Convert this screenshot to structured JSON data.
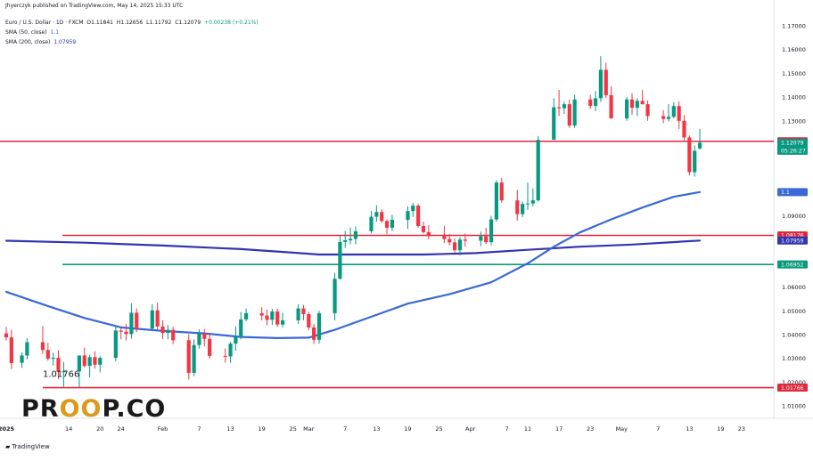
{
  "header": {
    "published_by": "Jhyerczyk published on TradingView.com, May 14, 2025 15:33 UTC",
    "symbol": "Euro / U.S. Dollar · 1D · FXCM",
    "open": "O1.11841",
    "high": "H1.12656",
    "low": "L1.11792",
    "close": "C1.12079",
    "change": "+0.00238 (+0.21%)",
    "sma50_label": "SMA (50, close)",
    "sma50_value": "1.1",
    "sma200_label": "SMA (200, close)",
    "sma200_value": "1.07959"
  },
  "footer": {
    "brand": "TradingView"
  },
  "logo": {
    "text_left": "PR",
    "text_mid": "OO",
    "text_right": "P.CO"
  },
  "colors": {
    "up": "#089981",
    "down": "#f23645",
    "sma50": "#3a68d8",
    "sma200": "#3136b0",
    "level_red": "#e1283c",
    "level_green": "#0a9a7b"
  },
  "chart_data": {
    "type": "candlestick",
    "symbol": "EURUSD",
    "timeframe": "1D",
    "ylim": [
      1.005,
      1.175
    ],
    "y_ticks": [
      "1.17000",
      "1.16000",
      "1.15000",
      "1.14000",
      "1.13000",
      "1.10000",
      "1.09000",
      "1.06000",
      "1.05000",
      "1.04000",
      "1.03000",
      "1.02000",
      "1.01000"
    ],
    "x_ticks": [
      "2025",
      "14",
      "20",
      "24",
      "Feb",
      "7",
      "13",
      "19",
      "25",
      "Mar",
      "7",
      "13",
      "19",
      "25",
      "Apr",
      "7",
      "11",
      "17",
      "23",
      "May",
      "7",
      "13",
      "19",
      "23"
    ],
    "x_tick_days": [
      0,
      12,
      18,
      22,
      30,
      37,
      43,
      49,
      55,
      58,
      65,
      71,
      77,
      83,
      89,
      96,
      100,
      106,
      112,
      118,
      125,
      131,
      137,
      141
    ],
    "last_day": 133,
    "candles": [
      {
        "d": 0,
        "o": 1.0405,
        "h": 1.0432,
        "l": 1.0375,
        "c": 1.0388
      },
      {
        "d": 1,
        "o": 1.0388,
        "h": 1.042,
        "l": 1.0255,
        "c": 1.028
      },
      {
        "d": 3,
        "o": 1.0281,
        "h": 1.0325,
        "l": 1.026,
        "c": 1.0312
      },
      {
        "d": 4,
        "o": 1.0312,
        "h": 1.0385,
        "l": 1.0295,
        "c": 1.0368
      },
      {
        "d": 7,
        "o": 1.0368,
        "h": 1.0436,
        "l": 1.0318,
        "c": 1.0335
      },
      {
        "d": 8,
        "o": 1.0335,
        "h": 1.0365,
        "l": 1.0291,
        "c": 1.0298
      },
      {
        "d": 9,
        "o": 1.0298,
        "h": 1.0324,
        "l": 1.027,
        "c": 1.0302
      },
      {
        "d": 10,
        "o": 1.0302,
        "h": 1.0334,
        "l": 1.0213,
        "c": 1.0243
      },
      {
        "d": 11,
        "o": 1.0243,
        "h": 1.0285,
        "l": 1.018,
        "c": 1.0245
      },
      {
        "d": 14,
        "o": 1.0245,
        "h": 1.031,
        "l": 1.0177,
        "c": 1.0312
      },
      {
        "d": 15,
        "o": 1.0312,
        "h": 1.0345,
        "l": 1.0262,
        "c": 1.0268
      },
      {
        "d": 16,
        "o": 1.0268,
        "h": 1.0315,
        "l": 1.022,
        "c": 1.0305
      },
      {
        "d": 17,
        "o": 1.0305,
        "h": 1.033,
        "l": 1.0256,
        "c": 1.0273
      },
      {
        "d": 18,
        "o": 1.0273,
        "h": 1.0308,
        "l": 1.0241,
        "c": 1.0302
      },
      {
        "d": 21,
        "o": 1.0302,
        "h": 1.044,
        "l": 1.0288,
        "c": 1.0417
      },
      {
        "d": 22,
        "o": 1.0417,
        "h": 1.0435,
        "l": 1.038,
        "c": 1.0412
      },
      {
        "d": 23,
        "o": 1.0412,
        "h": 1.0445,
        "l": 1.0375,
        "c": 1.0402
      },
      {
        "d": 24,
        "o": 1.0402,
        "h": 1.0532,
        "l": 1.0383,
        "c": 1.0492
      },
      {
        "d": 25,
        "o": 1.0492,
        "h": 1.051,
        "l": 1.041,
        "c": 1.0425
      },
      {
        "d": 28,
        "o": 1.0425,
        "h": 1.0528,
        "l": 1.0415,
        "c": 1.0502
      },
      {
        "d": 29,
        "o": 1.0502,
        "h": 1.0534,
        "l": 1.042,
        "c": 1.0434
      },
      {
        "d": 30,
        "o": 1.0434,
        "h": 1.046,
        "l": 1.0381,
        "c": 1.0407
      },
      {
        "d": 31,
        "o": 1.0407,
        "h": 1.044,
        "l": 1.038,
        "c": 1.042
      },
      {
        "d": 32,
        "o": 1.042,
        "h": 1.0434,
        "l": 1.036,
        "c": 1.0376
      },
      {
        "d": 35,
        "o": 1.0376,
        "h": 1.0401,
        "l": 1.021,
        "c": 1.0239
      },
      {
        "d": 36,
        "o": 1.0239,
        "h": 1.038,
        "l": 1.0225,
        "c": 1.0356
      },
      {
        "d": 37,
        "o": 1.0356,
        "h": 1.0422,
        "l": 1.0341,
        "c": 1.0405
      },
      {
        "d": 38,
        "o": 1.0405,
        "h": 1.0423,
        "l": 1.035,
        "c": 1.0382
      },
      {
        "d": 39,
        "o": 1.0382,
        "h": 1.0402,
        "l": 1.0298,
        "c": 1.031
      },
      {
        "d": 42,
        "o": 1.031,
        "h": 1.0342,
        "l": 1.0282,
        "c": 1.0308
      },
      {
        "d": 43,
        "o": 1.0308,
        "h": 1.037,
        "l": 1.0281,
        "c": 1.0362
      },
      {
        "d": 44,
        "o": 1.0362,
        "h": 1.0435,
        "l": 1.0332,
        "c": 1.039
      },
      {
        "d": 45,
        "o": 1.039,
        "h": 1.0495,
        "l": 1.038,
        "c": 1.0464
      },
      {
        "d": 46,
        "o": 1.0464,
        "h": 1.051,
        "l": 1.0456,
        "c": 1.049
      },
      {
        "d": 49,
        "o": 1.049,
        "h": 1.0515,
        "l": 1.046,
        "c": 1.048
      },
      {
        "d": 50,
        "o": 1.048,
        "h": 1.0505,
        "l": 1.0439,
        "c": 1.0462
      },
      {
        "d": 51,
        "o": 1.0462,
        "h": 1.0508,
        "l": 1.044,
        "c": 1.0497
      },
      {
        "d": 52,
        "o": 1.0497,
        "h": 1.051,
        "l": 1.0432,
        "c": 1.0442
      },
      {
        "d": 53,
        "o": 1.0442,
        "h": 1.0492,
        "l": 1.043,
        "c": 1.046
      },
      {
        "d": 56,
        "o": 1.046,
        "h": 1.0528,
        "l": 1.0445,
        "c": 1.051
      },
      {
        "d": 57,
        "o": 1.051,
        "h": 1.0525,
        "l": 1.046,
        "c": 1.0486
      },
      {
        "d": 58,
        "o": 1.0486,
        "h": 1.0496,
        "l": 1.0419,
        "c": 1.043
      },
      {
        "d": 59,
        "o": 1.043,
        "h": 1.0445,
        "l": 1.036,
        "c": 1.0378
      },
      {
        "d": 60,
        "o": 1.0378,
        "h": 1.05,
        "l": 1.0362,
        "c": 1.049
      },
      {
        "d": 63,
        "o": 1.049,
        "h": 1.066,
        "l": 1.046,
        "c": 1.0635
      },
      {
        "d": 64,
        "o": 1.0635,
        "h": 1.0815,
        "l": 1.0632,
        "c": 1.079
      },
      {
        "d": 65,
        "o": 1.079,
        "h": 1.0837,
        "l": 1.0765,
        "c": 1.0797
      },
      {
        "d": 66,
        "o": 1.0797,
        "h": 1.085,
        "l": 1.078,
        "c": 1.0803
      },
      {
        "d": 67,
        "o": 1.0803,
        "h": 1.0855,
        "l": 1.078,
        "c": 1.0835
      },
      {
        "d": 70,
        "o": 1.0835,
        "h": 1.092,
        "l": 1.0825,
        "c": 1.0896
      },
      {
        "d": 71,
        "o": 1.0896,
        "h": 1.0945,
        "l": 1.0875,
        "c": 1.0916
      },
      {
        "d": 72,
        "o": 1.0916,
        "h": 1.0928,
        "l": 1.087,
        "c": 1.0878
      },
      {
        "d": 73,
        "o": 1.0878,
        "h": 1.0885,
        "l": 1.0822,
        "c": 1.085
      },
      {
        "d": 74,
        "o": 1.085,
        "h": 1.0905,
        "l": 1.0836,
        "c": 1.0883
      },
      {
        "d": 77,
        "o": 1.0883,
        "h": 1.094,
        "l": 1.0845,
        "c": 1.092
      },
      {
        "d": 78,
        "o": 1.092,
        "h": 1.0955,
        "l": 1.0895,
        "c": 1.0943
      },
      {
        "d": 79,
        "o": 1.0943,
        "h": 1.095,
        "l": 1.085,
        "c": 1.0857
      },
      {
        "d": 80,
        "o": 1.0857,
        "h": 1.0875,
        "l": 1.0826,
        "c": 1.0831
      },
      {
        "d": 81,
        "o": 1.0831,
        "h": 1.086,
        "l": 1.08,
        "c": 1.0815
      },
      {
        "d": 84,
        "o": 1.0815,
        "h": 1.0858,
        "l": 1.0785,
        "c": 1.0802
      },
      {
        "d": 85,
        "o": 1.0802,
        "h": 1.0824,
        "l": 1.0775,
        "c": 1.0788
      },
      {
        "d": 86,
        "o": 1.0788,
        "h": 1.0804,
        "l": 1.0745,
        "c": 1.0755
      },
      {
        "d": 87,
        "o": 1.0755,
        "h": 1.081,
        "l": 1.0733,
        "c": 1.08
      },
      {
        "d": 88,
        "o": 1.08,
        "h": 1.0825,
        "l": 1.077,
        "c": 1.0795
      },
      {
        "d": 91,
        "o": 1.0795,
        "h": 1.0834,
        "l": 1.0772,
        "c": 1.0814
      },
      {
        "d": 92,
        "o": 1.0814,
        "h": 1.085,
        "l": 1.078,
        "c": 1.0789
      },
      {
        "d": 93,
        "o": 1.0789,
        "h": 1.09,
        "l": 1.0776,
        "c": 1.0885
      },
      {
        "d": 94,
        "o": 1.0885,
        "h": 1.105,
        "l": 1.0876,
        "c": 1.104
      },
      {
        "d": 95,
        "o": 1.104,
        "h": 1.106,
        "l": 1.0955,
        "c": 1.0965
      },
      {
        "d": 98,
        "o": 1.0965,
        "h": 1.101,
        "l": 1.088,
        "c": 1.0907
      },
      {
        "d": 99,
        "o": 1.0907,
        "h": 1.096,
        "l": 1.0895,
        "c": 1.095
      },
      {
        "d": 100,
        "o": 1.095,
        "h": 1.104,
        "l": 1.0925,
        "c": 1.0952
      },
      {
        "d": 101,
        "o": 1.0952,
        "h": 1.1015,
        "l": 1.094,
        "c": 1.0965
      },
      {
        "d": 102,
        "o": 1.0965,
        "h": 1.1235,
        "l": 1.096,
        "c": 1.122
      },
      {
        "d": 105,
        "o": 1.122,
        "h": 1.1395,
        "l": 1.122,
        "c": 1.1357
      },
      {
        "d": 106,
        "o": 1.1357,
        "h": 1.143,
        "l": 1.132,
        "c": 1.1353
      },
      {
        "d": 107,
        "o": 1.1353,
        "h": 1.138,
        "l": 1.1329,
        "c": 1.137
      },
      {
        "d": 108,
        "o": 1.137,
        "h": 1.139,
        "l": 1.127,
        "c": 1.128
      },
      {
        "d": 109,
        "o": 1.128,
        "h": 1.141,
        "l": 1.127,
        "c": 1.139
      },
      {
        "d": 112,
        "o": 1.139,
        "h": 1.141,
        "l": 1.135,
        "c": 1.1363
      },
      {
        "d": 113,
        "o": 1.1363,
        "h": 1.1425,
        "l": 1.134,
        "c": 1.1395
      },
      {
        "d": 114,
        "o": 1.1395,
        "h": 1.1572,
        "l": 1.138,
        "c": 1.1515
      },
      {
        "d": 115,
        "o": 1.1515,
        "h": 1.1545,
        "l": 1.1395,
        "c": 1.1408
      },
      {
        "d": 116,
        "o": 1.1408,
        "h": 1.1445,
        "l": 1.131,
        "c": 1.131
      },
      {
        "d": 119,
        "o": 1.131,
        "h": 1.14,
        "l": 1.13,
        "c": 1.139
      },
      {
        "d": 120,
        "o": 1.139,
        "h": 1.1415,
        "l": 1.1325,
        "c": 1.1355
      },
      {
        "d": 121,
        "o": 1.1355,
        "h": 1.1395,
        "l": 1.132,
        "c": 1.1384
      },
      {
        "d": 122,
        "o": 1.1384,
        "h": 1.143,
        "l": 1.1368,
        "c": 1.137
      },
      {
        "d": 123,
        "o": 1.137,
        "h": 1.1386,
        "l": 1.13,
        "c": 1.132
      },
      {
        "d": 126,
        "o": 1.132,
        "h": 1.1345,
        "l": 1.129,
        "c": 1.1308
      },
      {
        "d": 127,
        "o": 1.1308,
        "h": 1.137,
        "l": 1.1298,
        "c": 1.1317
      },
      {
        "d": 128,
        "o": 1.1317,
        "h": 1.1378,
        "l": 1.131,
        "c": 1.1362
      },
      {
        "d": 129,
        "o": 1.1362,
        "h": 1.1382,
        "l": 1.1265,
        "c": 1.13
      },
      {
        "d": 130,
        "o": 1.13,
        "h": 1.1325,
        "l": 1.1218,
        "c": 1.123
      },
      {
        "d": 131,
        "o": 1.123,
        "h": 1.1238,
        "l": 1.107,
        "c": 1.1084
      },
      {
        "d": 132,
        "o": 1.1084,
        "h": 1.1196,
        "l": 1.1065,
        "c": 1.1174
      },
      {
        "d": 133,
        "o": 1.1184,
        "h": 1.1266,
        "l": 1.1179,
        "c": 1.1208
      }
    ],
    "sma200_points": [
      [
        0,
        1.0795
      ],
      [
        15,
        1.0787
      ],
      [
        30,
        1.0775
      ],
      [
        45,
        1.076
      ],
      [
        55,
        1.0745
      ],
      [
        60,
        1.0737
      ],
      [
        70,
        1.0737
      ],
      [
        80,
        1.0737
      ],
      [
        90,
        1.0743
      ],
      [
        100,
        1.0757
      ],
      [
        110,
        1.077
      ],
      [
        120,
        1.0779
      ],
      [
        133,
        1.0796
      ]
    ],
    "sma50_points": [
      [
        0,
        1.058
      ],
      [
        8,
        1.052
      ],
      [
        15,
        1.047
      ],
      [
        22,
        1.043
      ],
      [
        30,
        1.0415
      ],
      [
        38,
        1.0405
      ],
      [
        45,
        1.039
      ],
      [
        52,
        1.0385
      ],
      [
        58,
        1.0387
      ],
      [
        63,
        1.042
      ],
      [
        70,
        1.0475
      ],
      [
        77,
        1.053
      ],
      [
        85,
        1.057
      ],
      [
        93,
        1.062
      ],
      [
        100,
        1.07
      ],
      [
        105,
        1.077
      ],
      [
        110,
        1.083
      ],
      [
        116,
        1.0885
      ],
      [
        122,
        1.0935
      ],
      [
        128,
        1.098
      ],
      [
        133,
        1.1
      ]
    ],
    "levels": [
      {
        "value": 1.12138,
        "label": "1.12138",
        "color": "#e1283c"
      },
      {
        "value": 1.08176,
        "label": "1.08176",
        "color": "#e1283c"
      },
      {
        "value": 1.06952,
        "label": "1.06952",
        "color": "#0a9a7b"
      },
      {
        "value": 1.01766,
        "label": "1.01766",
        "color": "#e1283c"
      }
    ],
    "price_tags": {
      "last_price": "1.12079",
      "countdown": "05:26:27",
      "sma50_tag": "1.1",
      "sma200_tag": "1.07959"
    },
    "annotation": "1.01766"
  }
}
